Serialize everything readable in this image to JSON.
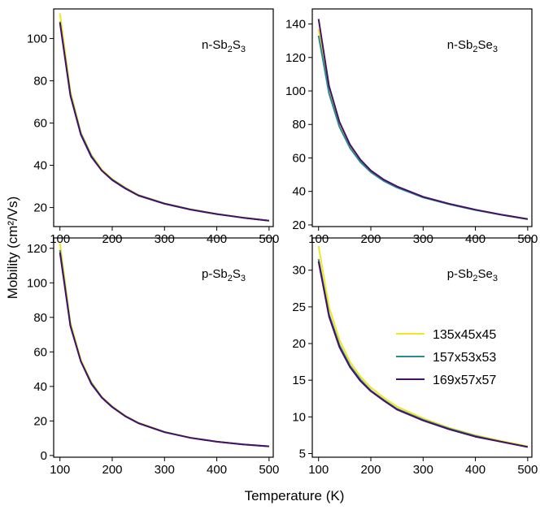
{
  "figure": {
    "xlabel": "Temperature (K)",
    "ylabel": "Mobility (cm²/Vs)"
  },
  "legend": [
    {
      "label": "135x45x45",
      "color": "#f2e61c"
    },
    {
      "label": "157x53x53",
      "color": "#2a8c8f"
    },
    {
      "label": "169x57x57",
      "color": "#46106a"
    }
  ],
  "chart_data": [
    {
      "type": "line",
      "panel_label": {
        "prefix": "n-Sb",
        "sub1": "2",
        "mid": "S",
        "sub2": "3"
      },
      "xlim": [
        88,
        508
      ],
      "ylim": [
        11,
        114
      ],
      "xticks": [
        100,
        200,
        300,
        400,
        500
      ],
      "yticks": [
        20,
        40,
        60,
        80,
        100
      ],
      "x": [
        100,
        120,
        140,
        160,
        180,
        200,
        225,
        250,
        300,
        350,
        400,
        450,
        500
      ],
      "series": [
        {
          "name": "135x45x45",
          "values": [
            112,
            75,
            55.5,
            45,
            38,
            33.5,
            29.5,
            26,
            22,
            19.2,
            17,
            15.3,
            13.8
          ]
        },
        {
          "name": "157x53x53",
          "values": [
            108,
            73.5,
            55,
            44.5,
            37.5,
            33.2,
            29.2,
            25.8,
            21.9,
            19.1,
            16.9,
            15.2,
            13.8
          ]
        },
        {
          "name": "169x57x57",
          "values": [
            107.5,
            73,
            54.5,
            44,
            37.5,
            33,
            29,
            25.7,
            21.8,
            19,
            16.9,
            15.2,
            13.8
          ]
        }
      ]
    },
    {
      "type": "line",
      "panel_label": {
        "prefix": "n-Sb",
        "sub1": "2",
        "mid": "Se",
        "sub2": "3"
      },
      "xlim": [
        88,
        508
      ],
      "ylim": [
        19,
        149
      ],
      "xticks": [
        100,
        200,
        300,
        400,
        500
      ],
      "yticks": [
        20,
        40,
        60,
        80,
        100,
        120,
        140
      ],
      "x": [
        100,
        120,
        140,
        160,
        180,
        200,
        225,
        250,
        300,
        350,
        400,
        450,
        500
      ],
      "series": [
        {
          "name": "135x45x45",
          "values": [
            137,
            100,
            79,
            66.5,
            58,
            52,
            46.5,
            42.5,
            36.5,
            32.5,
            29,
            26,
            23.5
          ]
        },
        {
          "name": "157x53x53",
          "values": [
            133,
            98.5,
            78.5,
            66,
            57.5,
            51.5,
            46.2,
            42.3,
            36.4,
            32.3,
            28.9,
            26,
            23.4
          ]
        },
        {
          "name": "169x57x57",
          "values": [
            143,
            103,
            81.5,
            68,
            59,
            52.5,
            47,
            43,
            36.8,
            32.6,
            29.1,
            26.1,
            23.5
          ]
        }
      ]
    },
    {
      "type": "line",
      "panel_label": {
        "prefix": "p-Sb",
        "sub1": "2",
        "mid": "S",
        "sub2": "3"
      },
      "xlim": [
        88,
        508
      ],
      "ylim": [
        -1,
        126
      ],
      "xticks": [
        100,
        200,
        300,
        400,
        500
      ],
      "yticks": [
        0,
        20,
        40,
        60,
        80,
        100,
        120
      ],
      "x": [
        100,
        120,
        140,
        160,
        180,
        200,
        225,
        250,
        300,
        350,
        400,
        450,
        500
      ],
      "series": [
        {
          "name": "135x45x45",
          "values": [
            123,
            77,
            55.5,
            42.5,
            34,
            28.5,
            23,
            19,
            13.7,
            10.3,
            8,
            6.5,
            5.3
          ]
        },
        {
          "name": "157x53x53",
          "values": [
            119,
            75.5,
            54.5,
            42,
            33.7,
            28.2,
            22.8,
            18.8,
            13.6,
            10.2,
            8,
            6.4,
            5.3
          ]
        },
        {
          "name": "169x57x57",
          "values": [
            117.5,
            75,
            54.5,
            41.5,
            33.5,
            28,
            22.7,
            18.7,
            13.5,
            10.2,
            8,
            6.4,
            5.3
          ]
        }
      ]
    },
    {
      "type": "line",
      "panel_label": {
        "prefix": "p-Sb",
        "sub1": "2",
        "mid": "Se",
        "sub2": "3"
      },
      "xlim": [
        88,
        508
      ],
      "ylim": [
        4.5,
        34.4
      ],
      "xticks": [
        100,
        200,
        300,
        400,
        500
      ],
      "yticks": [
        5,
        10,
        15,
        20,
        25,
        30
      ],
      "x": [
        100,
        120,
        140,
        160,
        180,
        200,
        225,
        250,
        300,
        350,
        400,
        450,
        500
      ],
      "series": [
        {
          "name": "135x45x45",
          "values": [
            33.3,
            25,
            20.5,
            17.5,
            15.5,
            14,
            12.6,
            11.4,
            9.8,
            8.5,
            7.5,
            6.7,
            6
          ]
        },
        {
          "name": "157x53x53",
          "values": [
            31.5,
            24,
            19.8,
            17,
            15.1,
            13.6,
            12.3,
            11.1,
            9.6,
            8.4,
            7.4,
            6.6,
            5.9
          ]
        },
        {
          "name": "169x57x57",
          "values": [
            31.2,
            23.7,
            19.5,
            16.8,
            14.9,
            13.5,
            12.2,
            11,
            9.5,
            8.3,
            7.3,
            6.6,
            5.9
          ]
        }
      ]
    }
  ]
}
